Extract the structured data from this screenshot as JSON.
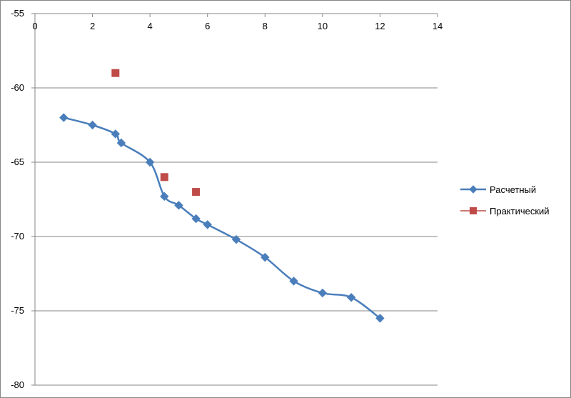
{
  "chart_data": {
    "type": "scatter",
    "title": "",
    "xlabel": "",
    "ylabel": "",
    "xlim": [
      0,
      14
    ],
    "ylim": [
      -80,
      -55
    ],
    "x_ticks": [
      0,
      2,
      4,
      6,
      8,
      10,
      12,
      14
    ],
    "y_ticks": [
      -55,
      -60,
      -65,
      -70,
      -75,
      -80
    ],
    "x_axis_position": "top",
    "grid": "horizontal",
    "legend_position": "right",
    "series": [
      {
        "name": "Расчетный",
        "style": "smooth-line-with-diamond-markers",
        "color": "#4A7EBB",
        "points": [
          [
            1,
            -62
          ],
          [
            2,
            -62.5
          ],
          [
            2.8,
            -63.1
          ],
          [
            3,
            -63.7
          ],
          [
            4,
            -65
          ],
          [
            4.5,
            -67.3
          ],
          [
            5,
            -67.9
          ],
          [
            5.6,
            -68.8
          ],
          [
            6,
            -69.2
          ],
          [
            7,
            -70.2
          ],
          [
            8,
            -71.4
          ],
          [
            9,
            -73
          ],
          [
            10,
            -73.8
          ],
          [
            11,
            -74.1
          ],
          [
            12,
            -75.5
          ]
        ]
      },
      {
        "name": "Практический",
        "style": "square-markers",
        "color": "#BE4B48",
        "points": [
          [
            2.8,
            -59
          ],
          [
            4.5,
            -66
          ],
          [
            5.6,
            -67
          ]
        ]
      }
    ]
  }
}
